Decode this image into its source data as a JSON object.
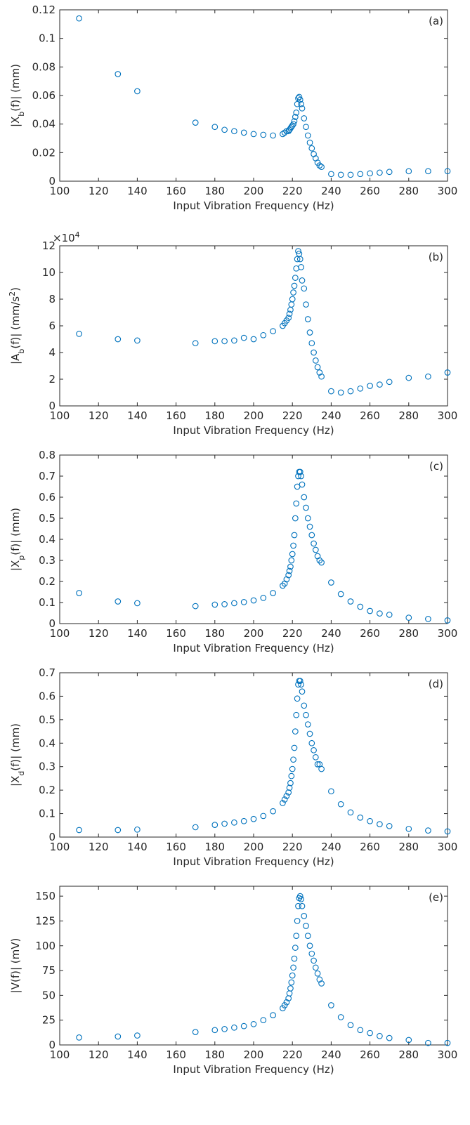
{
  "chart_data": [
    {
      "type": "scatter",
      "annotation": "(a)",
      "xlabel": "Input Vibration Frequency (Hz)",
      "ylabel": [
        {
          "text": "|X"
        },
        {
          "text": "b",
          "script": "sub"
        },
        {
          "text": "(f)| (mm)"
        }
      ],
      "xlim": [
        100,
        300
      ],
      "xticks": [
        100,
        120,
        140,
        160,
        180,
        200,
        220,
        240,
        260,
        280,
        300
      ],
      "ylim": [
        0,
        0.12
      ],
      "yticks": [
        0,
        0.02,
        0.04,
        0.06,
        0.08,
        0.1,
        0.12
      ],
      "color": "#0072bd",
      "x": [
        110,
        130,
        140,
        170,
        180,
        185,
        190,
        195,
        200,
        205,
        210,
        215,
        216,
        217,
        218,
        218.5,
        219,
        219.5,
        220,
        220.5,
        221,
        221.5,
        222,
        222.5,
        223,
        223.5,
        224,
        224.5,
        225,
        226,
        227,
        228,
        229,
        230,
        231,
        232,
        233,
        234,
        235,
        240,
        245,
        250,
        255,
        260,
        265,
        270,
        280,
        290,
        300
      ],
      "values": [
        0.114,
        0.075,
        0.063,
        0.041,
        0.038,
        0.036,
        0.035,
        0.034,
        0.033,
        0.0325,
        0.032,
        0.033,
        0.034,
        0.035,
        0.035,
        0.036,
        0.037,
        0.038,
        0.039,
        0.04,
        0.042,
        0.045,
        0.048,
        0.054,
        0.058,
        0.059,
        0.057,
        0.054,
        0.051,
        0.044,
        0.038,
        0.032,
        0.027,
        0.023,
        0.019,
        0.016,
        0.013,
        0.011,
        0.01,
        0.005,
        0.0045,
        0.0045,
        0.005,
        0.0055,
        0.006,
        0.0065,
        0.007,
        0.007,
        0.007
      ]
    },
    {
      "type": "scatter",
      "annotation": "(b)",
      "xlabel": "Input Vibration Frequency (Hz)",
      "ylabel": [
        {
          "text": "|A"
        },
        {
          "text": "b",
          "script": "sub"
        },
        {
          "text": "(f)| (mm/s"
        },
        {
          "text": "2",
          "script": "super"
        },
        {
          "text": ")"
        }
      ],
      "y_multiplier": [
        {
          "text": "×10"
        },
        {
          "text": "4",
          "script": "super"
        }
      ],
      "xlim": [
        100,
        300
      ],
      "xticks": [
        100,
        120,
        140,
        160,
        180,
        200,
        220,
        240,
        260,
        280,
        300
      ],
      "ylim": [
        0,
        12
      ],
      "yticks": [
        0,
        2,
        4,
        6,
        8,
        10,
        12
      ],
      "color": "#0072bd",
      "x": [
        110,
        130,
        140,
        170,
        180,
        185,
        190,
        195,
        200,
        205,
        210,
        215,
        216,
        217,
        218,
        218.5,
        219,
        219.5,
        220,
        220.5,
        221,
        221.5,
        222,
        222.5,
        223,
        223.5,
        224,
        224.5,
        225,
        226,
        227,
        228,
        229,
        230,
        231,
        232,
        233,
        234,
        235,
        240,
        245,
        250,
        255,
        260,
        265,
        270,
        280,
        290,
        300
      ],
      "values": [
        5.4,
        5.0,
        4.9,
        4.7,
        4.85,
        4.85,
        4.9,
        5.1,
        5.0,
        5.3,
        5.6,
        6.0,
        6.2,
        6.4,
        6.6,
        6.9,
        7.2,
        7.6,
        8.0,
        8.5,
        9.0,
        9.6,
        10.3,
        11.0,
        11.6,
        11.4,
        11.0,
        10.4,
        9.4,
        8.8,
        7.6,
        6.5,
        5.5,
        4.7,
        4.0,
        3.4,
        2.9,
        2.5,
        2.2,
        1.1,
        1.0,
        1.1,
        1.3,
        1.5,
        1.6,
        1.8,
        2.1,
        2.2,
        2.5
      ]
    },
    {
      "type": "scatter",
      "annotation": "(c)",
      "xlabel": "Input Vibration Frequency (Hz)",
      "ylabel": [
        {
          "text": "|X"
        },
        {
          "text": "p",
          "script": "sub"
        },
        {
          "text": "(f)| (mm)"
        }
      ],
      "xlim": [
        100,
        300
      ],
      "xticks": [
        100,
        120,
        140,
        160,
        180,
        200,
        220,
        240,
        260,
        280,
        300
      ],
      "ylim": [
        0,
        0.8
      ],
      "yticks": [
        0,
        0.1,
        0.2,
        0.3,
        0.4,
        0.5,
        0.6,
        0.7,
        0.8
      ],
      "color": "#0072bd",
      "x": [
        110,
        130,
        140,
        170,
        180,
        185,
        190,
        195,
        200,
        205,
        210,
        215,
        216,
        217,
        218,
        218.5,
        219,
        219.5,
        220,
        220.5,
        221,
        221.5,
        222,
        222.5,
        223,
        223.5,
        224,
        224.5,
        225,
        226,
        227,
        228,
        229,
        230,
        231,
        232,
        233,
        234,
        235,
        240,
        245,
        250,
        255,
        260,
        265,
        270,
        280,
        290,
        300
      ],
      "values": [
        0.145,
        0.105,
        0.097,
        0.083,
        0.09,
        0.092,
        0.097,
        0.102,
        0.11,
        0.122,
        0.145,
        0.18,
        0.19,
        0.21,
        0.23,
        0.25,
        0.27,
        0.3,
        0.33,
        0.37,
        0.42,
        0.5,
        0.57,
        0.65,
        0.7,
        0.72,
        0.72,
        0.7,
        0.66,
        0.6,
        0.55,
        0.5,
        0.46,
        0.42,
        0.38,
        0.35,
        0.32,
        0.3,
        0.29,
        0.195,
        0.14,
        0.105,
        0.08,
        0.06,
        0.048,
        0.042,
        0.028,
        0.022,
        0.015
      ]
    },
    {
      "type": "scatter",
      "annotation": "(d)",
      "xlabel": "Input Vibration Frequency (Hz)",
      "ylabel": [
        {
          "text": "|X"
        },
        {
          "text": "d",
          "script": "sub"
        },
        {
          "text": "(f)| (mm)"
        }
      ],
      "xlim": [
        100,
        300
      ],
      "xticks": [
        100,
        120,
        140,
        160,
        180,
        200,
        220,
        240,
        260,
        280,
        300
      ],
      "ylim": [
        0,
        0.7
      ],
      "yticks": [
        0,
        0.1,
        0.2,
        0.3,
        0.4,
        0.5,
        0.6,
        0.7
      ],
      "color": "#0072bd",
      "x": [
        110,
        130,
        140,
        170,
        180,
        185,
        190,
        195,
        200,
        205,
        210,
        215,
        216,
        217,
        218,
        218.5,
        219,
        219.5,
        220,
        220.5,
        221,
        221.5,
        222,
        222.5,
        223,
        223.5,
        224,
        224.5,
        225,
        226,
        227,
        228,
        229,
        230,
        231,
        232,
        233,
        234,
        235,
        240,
        245,
        250,
        255,
        260,
        265,
        270,
        280,
        290,
        300
      ],
      "values": [
        0.03,
        0.03,
        0.032,
        0.042,
        0.052,
        0.057,
        0.062,
        0.068,
        0.077,
        0.09,
        0.11,
        0.145,
        0.16,
        0.175,
        0.19,
        0.21,
        0.23,
        0.26,
        0.29,
        0.33,
        0.38,
        0.45,
        0.52,
        0.59,
        0.65,
        0.665,
        0.665,
        0.65,
        0.62,
        0.56,
        0.52,
        0.48,
        0.44,
        0.4,
        0.37,
        0.34,
        0.31,
        0.31,
        0.29,
        0.195,
        0.14,
        0.105,
        0.083,
        0.068,
        0.055,
        0.047,
        0.035,
        0.028,
        0.024
      ]
    },
    {
      "type": "scatter",
      "annotation": "(e)",
      "xlabel": "Input Vibration Frequency (Hz)",
      "ylabel": [
        {
          "text": "|V(f)| (mV)"
        }
      ],
      "xlim": [
        100,
        300
      ],
      "xticks": [
        100,
        120,
        140,
        160,
        180,
        200,
        220,
        240,
        260,
        280,
        300
      ],
      "ylim": [
        0,
        160
      ],
      "yticks": [
        0,
        25,
        50,
        75,
        100,
        125,
        150
      ],
      "color": "#0072bd",
      "x": [
        110,
        130,
        140,
        170,
        180,
        185,
        190,
        195,
        200,
        205,
        210,
        215,
        216,
        217,
        218,
        218.5,
        219,
        219.5,
        220,
        220.5,
        221,
        221.5,
        222,
        222.5,
        223,
        223.5,
        224,
        224.5,
        225,
        226,
        227,
        228,
        229,
        230,
        231,
        232,
        233,
        234,
        235,
        240,
        245,
        250,
        255,
        260,
        265,
        270,
        280,
        290,
        300
      ],
      "values": [
        7.5,
        8.5,
        9.5,
        13,
        15,
        16,
        17.5,
        19,
        21,
        25,
        30,
        37,
        40,
        43,
        47,
        52,
        57,
        63,
        70,
        78,
        87,
        98,
        110,
        125,
        140,
        148,
        150,
        147,
        140,
        130,
        120,
        110,
        100,
        92,
        85,
        78,
        72,
        66,
        62,
        40,
        28,
        20,
        15,
        12,
        9,
        7,
        5,
        2,
        2
      ]
    }
  ]
}
